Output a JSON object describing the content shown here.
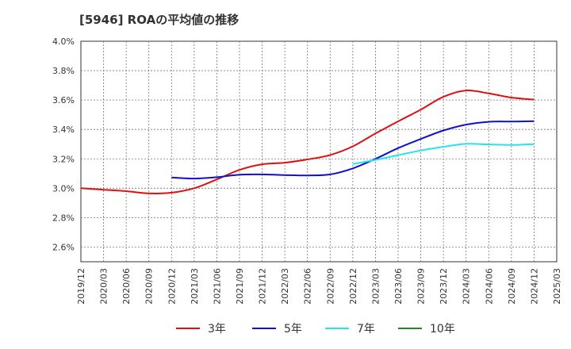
{
  "chart_data": {
    "type": "line",
    "title": "[5946]  ROAの平均値の推移",
    "xlabel": "",
    "ylabel": "",
    "ylim": [
      2.5,
      4.0
    ],
    "grid": true,
    "legend_position": "bottom",
    "y_ticks": [
      {
        "value": 2.6,
        "label": "2.6%"
      },
      {
        "value": 2.8,
        "label": "2.8%"
      },
      {
        "value": 3.0,
        "label": "3.0%"
      },
      {
        "value": 3.2,
        "label": "3.2%"
      },
      {
        "value": 3.4,
        "label": "3.4%"
      },
      {
        "value": 3.6,
        "label": "3.6%"
      },
      {
        "value": 3.8,
        "label": "3.8%"
      },
      {
        "value": 4.0,
        "label": "4.0%"
      }
    ],
    "x_categories": [
      "2019/12",
      "2020/03",
      "2020/06",
      "2020/09",
      "2020/12",
      "2021/03",
      "2021/06",
      "2021/09",
      "2021/12",
      "2022/03",
      "2022/06",
      "2022/09",
      "2022/12",
      "2023/03",
      "2023/06",
      "2023/09",
      "2023/12",
      "2024/03",
      "2024/06",
      "2024/09",
      "2024/12",
      "2025/03"
    ],
    "series": [
      {
        "name": "3年",
        "color": "#dd1111",
        "values": [
          3.0,
          2.99,
          2.98,
          2.965,
          2.97,
          3.0,
          3.06,
          3.125,
          3.163,
          3.174,
          3.196,
          3.226,
          3.285,
          3.373,
          3.455,
          3.535,
          3.622,
          3.665,
          3.645,
          3.617,
          3.603,
          null
        ]
      },
      {
        "name": "5年",
        "color": "#1111cc",
        "values": [
          null,
          null,
          null,
          null,
          3.073,
          3.066,
          3.075,
          3.092,
          3.094,
          3.09,
          3.087,
          3.094,
          3.135,
          3.2,
          3.273,
          3.335,
          3.393,
          3.433,
          3.452,
          3.454,
          3.456,
          null
        ]
      },
      {
        "name": "7年",
        "color": "#22e5ee",
        "values": [
          null,
          null,
          null,
          null,
          null,
          null,
          null,
          null,
          null,
          null,
          null,
          null,
          3.165,
          3.193,
          3.225,
          3.257,
          3.282,
          3.302,
          3.298,
          3.295,
          3.3,
          null
        ]
      },
      {
        "name": "10年",
        "color": "#228822",
        "values": [
          null,
          null,
          null,
          null,
          null,
          null,
          null,
          null,
          null,
          null,
          null,
          null,
          null,
          null,
          null,
          null,
          null,
          null,
          null,
          null,
          null,
          null
        ]
      }
    ]
  }
}
